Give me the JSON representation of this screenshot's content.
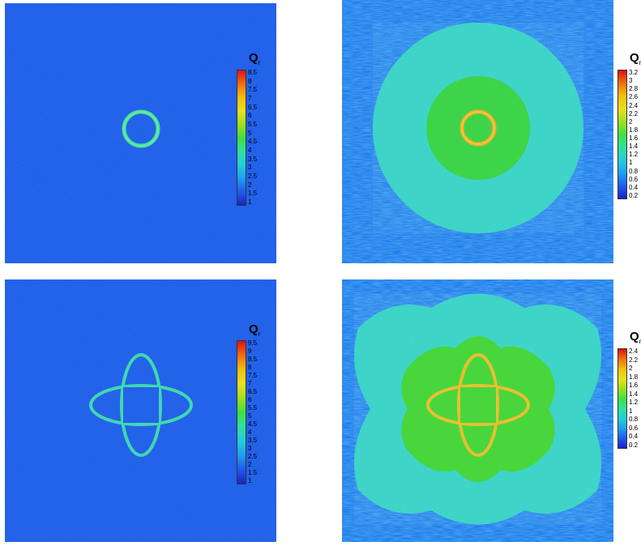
{
  "panels": [
    {
      "id": "p1",
      "legend": {
        "title": "Q",
        "subscript": "r",
        "ticks": [
          "8.5",
          "8",
          "7.5",
          "7",
          "6.5",
          "6",
          "5.5",
          "5",
          "4.5",
          "4",
          "3.5",
          "3",
          "2.5",
          "2",
          "1.5",
          "1"
        ]
      }
    },
    {
      "id": "p2",
      "legend": {
        "title": "Q",
        "subscript": "r",
        "ticks": [
          "3.2",
          "3",
          "2.8",
          "2.6",
          "2.4",
          "2.2",
          "2",
          "1.8",
          "1.6",
          "1.4",
          "1.2",
          "1",
          "0.8",
          "0.6",
          "0.4",
          "0.2"
        ]
      }
    },
    {
      "id": "p3",
      "legend": {
        "title": "Q",
        "subscript": "r",
        "ticks": [
          "9.5",
          "9",
          "8.5",
          "8",
          "7.5",
          "7",
          "6.5",
          "6",
          "5.5",
          "5",
          "4.5",
          "4",
          "3.5",
          "3",
          "2.5",
          "2",
          "1.5",
          "1"
        ]
      }
    },
    {
      "id": "p4",
      "legend": {
        "title": "Q",
        "subscript": "r",
        "ticks": [
          "2.4",
          "2.2",
          "2",
          "1.8",
          "1.6",
          "1.4",
          "1.2",
          "1",
          "0.8",
          "0.6",
          "0.4",
          "0.2"
        ]
      }
    }
  ],
  "colormap": [
    "#1a22c8",
    "#1f5cf0",
    "#1fa0f0",
    "#22d0d8",
    "#30e0a0",
    "#40e040",
    "#a0e020",
    "#e8e020",
    "#f0a010",
    "#e83010"
  ]
}
